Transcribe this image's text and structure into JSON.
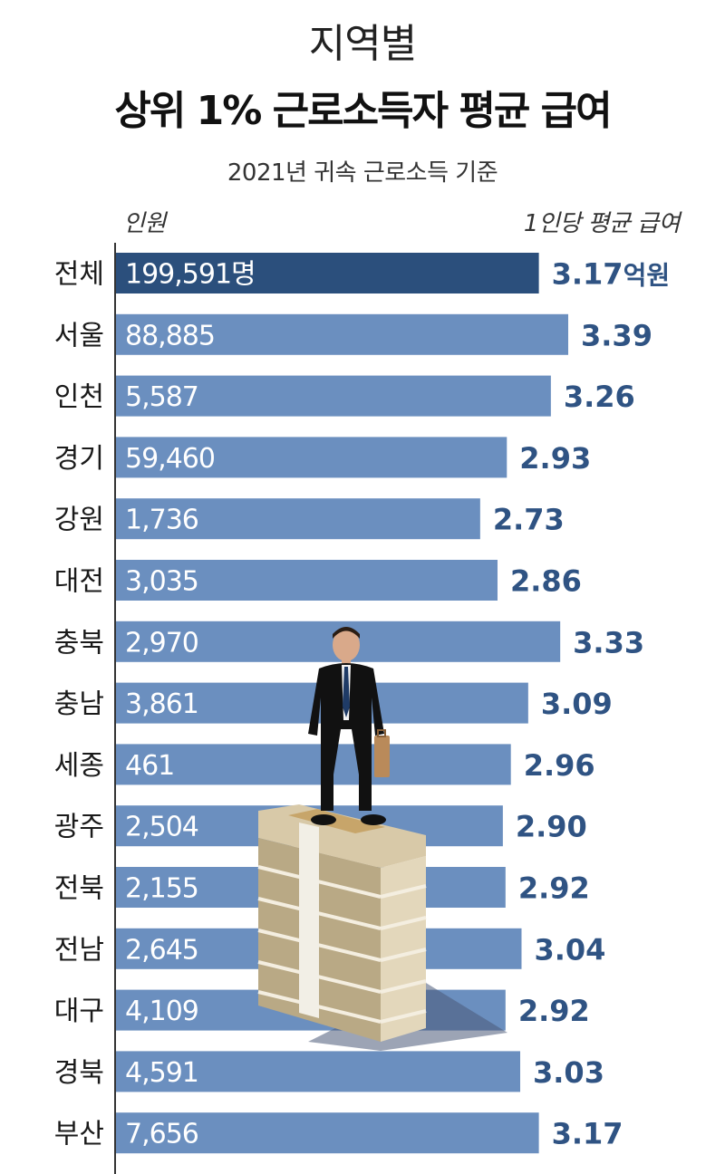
{
  "header": {
    "title_line1": "지역별",
    "title_line2": "상위 1% 근로소득자 평균 급여",
    "subtitle": "2021년 귀속 근로소득 기준",
    "left_col_label": "인원",
    "right_col_label": "1인당 평균 급여"
  },
  "colors": {
    "total_bar": "#2b4f7c",
    "bar": "#6b8fbf",
    "value_text": "#2f5383",
    "count_text": "#ffffff",
    "axis": "#333333"
  },
  "chart_data": {
    "type": "bar",
    "orientation": "horizontal",
    "title": "상위 1% 근로소득자 평균 급여",
    "subtitle": "2021년 귀속 근로소득 기준",
    "categories": [
      "전체",
      "서울",
      "인천",
      "경기",
      "강원",
      "대전",
      "충북",
      "충남",
      "세종",
      "광주",
      "전북",
      "전남",
      "대구",
      "경북",
      "부산"
    ],
    "series": [
      {
        "name": "1인당 평균 급여",
        "values": [
          3.17,
          3.39,
          3.26,
          2.93,
          2.73,
          2.86,
          3.33,
          3.09,
          2.96,
          2.9,
          2.92,
          3.04,
          2.92,
          3.03,
          3.17
        ],
        "labels": [
          "3.17",
          "3.39",
          "3.26",
          "2.93",
          "2.73",
          "2.86",
          "3.33",
          "3.09",
          "2.96",
          "2.90",
          "2.92",
          "3.04",
          "2.92",
          "3.03",
          "3.17"
        ],
        "first_label_unit": "억원"
      },
      {
        "name": "인원",
        "labels": [
          "199,591명",
          "88,885",
          "5,587",
          "59,460",
          "1,736",
          "3,035",
          "2,970",
          "3,861",
          "461",
          "2,504",
          "2,155",
          "2,645",
          "4,109",
          "4,591",
          "7,656"
        ]
      }
    ],
    "highlight_index": 0,
    "xlim": [
      0,
      3.4
    ]
  },
  "illustration": {
    "icon": "businessman-on-money-stack"
  }
}
